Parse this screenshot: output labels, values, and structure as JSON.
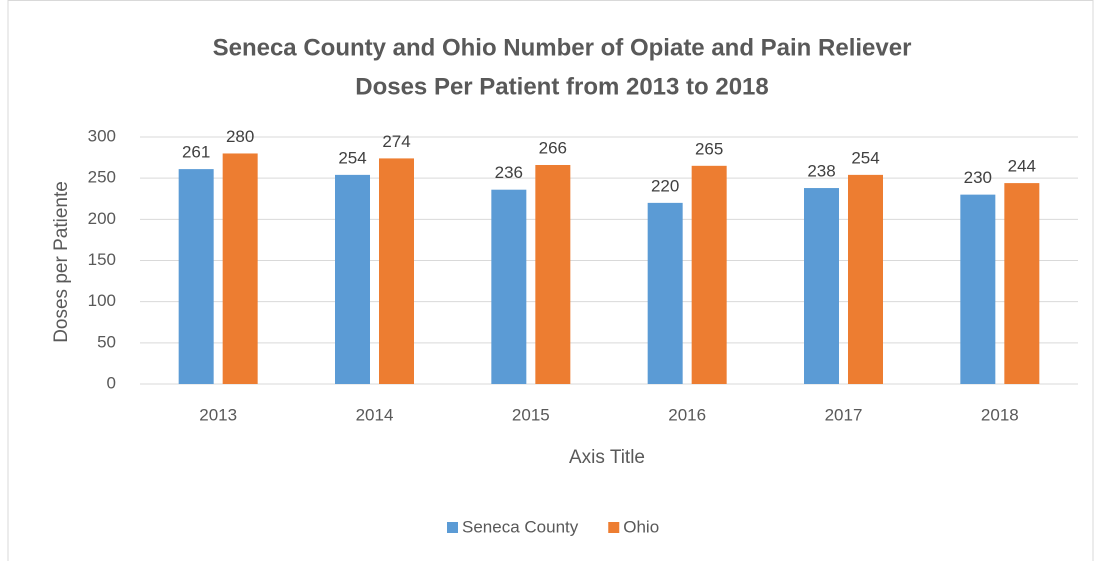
{
  "chart_data": {
    "type": "bar",
    "title": [
      "Seneca County and Ohio Number of Opiate and Pain Reliever",
      "Doses Per Patient from 2013 to 2018"
    ],
    "x_label": "Axis Title",
    "y_label": "Doses per Patiente",
    "categories": [
      "2013",
      "2014",
      "2015",
      "2016",
      "2017",
      "2018"
    ],
    "series": [
      {
        "name": "Seneca County",
        "color": "#5b9bd5",
        "values": [
          261,
          254,
          236,
          220,
          238,
          230
        ]
      },
      {
        "name": "Ohio",
        "color": "#ed7d31",
        "values": [
          280,
          274,
          266,
          265,
          254,
          244
        ]
      }
    ],
    "ylim": [
      0,
      300
    ],
    "yticks": [
      0,
      50,
      100,
      150,
      200,
      250,
      300
    ],
    "grid": true,
    "legend": "bottom"
  }
}
